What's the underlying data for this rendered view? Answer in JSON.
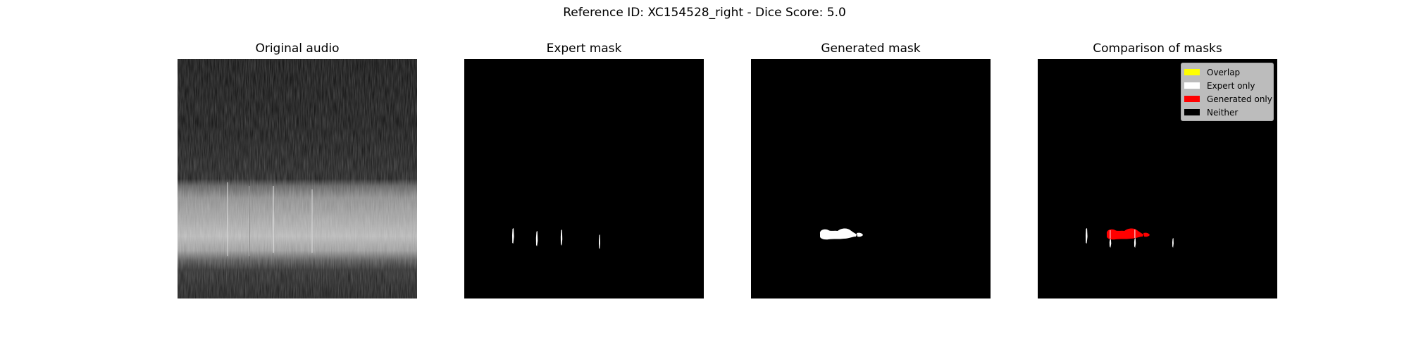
{
  "figure": {
    "suptitle": "Reference ID: XC154528_right - Dice Score: 5.0"
  },
  "panels": {
    "original": {
      "title": "Original audio"
    },
    "expert": {
      "title": "Expert mask"
    },
    "generated": {
      "title": "Generated mask"
    },
    "comparison": {
      "title": "Comparison of masks"
    }
  },
  "legend": {
    "entries": [
      {
        "label": "Overlap",
        "color": "#ffff00"
      },
      {
        "label": "Expert only",
        "color": "#ffffff"
      },
      {
        "label": "Generated only",
        "color": "#ff0000"
      },
      {
        "label": "Neither",
        "color": "#000000"
      }
    ]
  },
  "colors": {
    "background": "#000000",
    "expert": "#ffffff",
    "generated": "#ff0000",
    "overlap": "#ffff00"
  }
}
